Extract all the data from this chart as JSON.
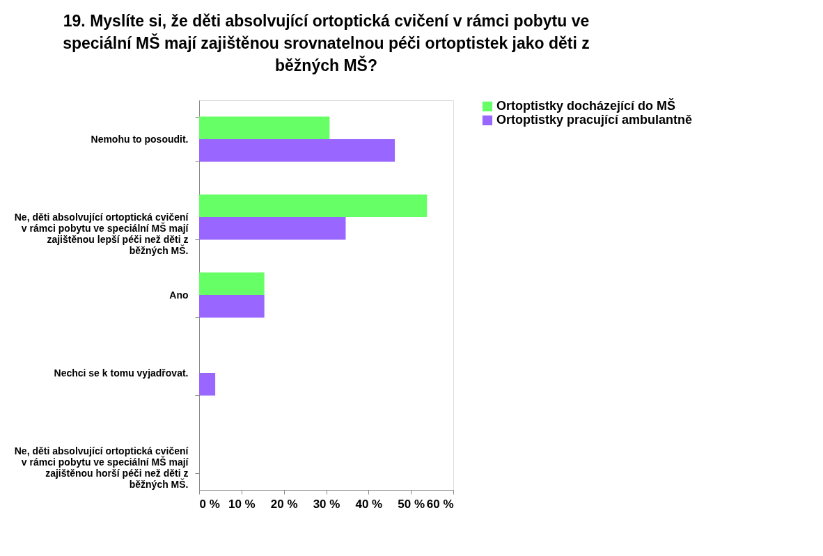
{
  "chart_data": {
    "type": "bar",
    "orientation": "horizontal",
    "title": "19. Myslíte si, že děti absolvující ortoptická cvičení v rámci pobytu ve speciální MŠ mají zajištěnou srovnatelnou péči ortoptistek jako děti z běžných MŠ?",
    "categories": [
      "Nemohu to posoudit.",
      "Ne, děti absolvující ortoptická cvičení v rámci pobytu ve speciální MŠ mají zajištěnou lepší péči než děti z běžných MŠ.",
      "Ano",
      "Nechci se k tomu vyjadřovat.",
      "Ne, děti absolvující ortoptická cvičení v rámci pobytu ve speciální MŠ mají zajištěnou horší péči než děti z běžných MŠ."
    ],
    "series": [
      {
        "name": "Ortoptistky docházející do MŠ",
        "color": "#66ff66",
        "values": [
          30.8,
          53.8,
          15.4,
          0,
          0
        ]
      },
      {
        "name": "Ortoptistky pracující ambulantně",
        "color": "#9966ff",
        "values": [
          46.2,
          34.6,
          15.4,
          3.8,
          0
        ]
      }
    ],
    "xlim": [
      0,
      60
    ],
    "xticks": [
      {
        "value": 0,
        "label": "0 %"
      },
      {
        "value": 10,
        "label": "10 %"
      },
      {
        "value": 20,
        "label": "20 %"
      },
      {
        "value": 30,
        "label": "30 %"
      },
      {
        "value": 40,
        "label": "40 %"
      },
      {
        "value": 50,
        "label": "50 %"
      },
      {
        "value": 60,
        "label": "60 %"
      }
    ],
    "grid": false,
    "legend": "right"
  }
}
